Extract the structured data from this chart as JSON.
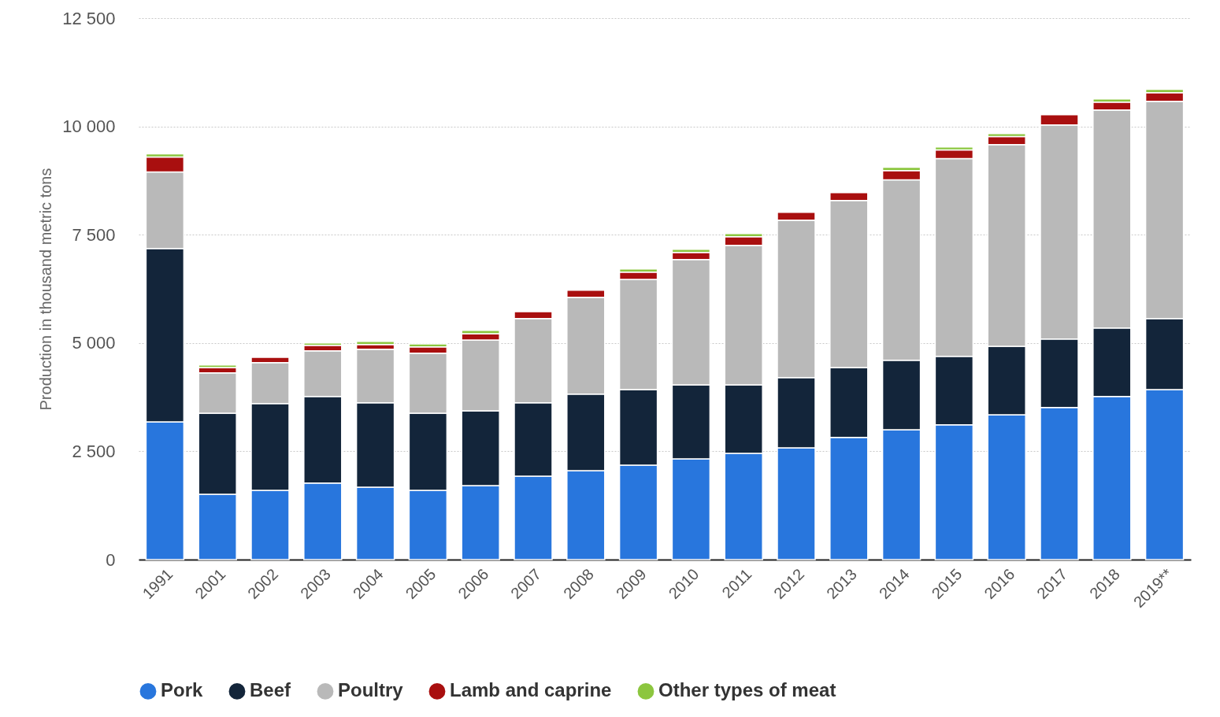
{
  "chart_data": {
    "type": "bar",
    "stacked": true,
    "ylabel": "Production in thousand metric tons",
    "categories": [
      "1991",
      "2001",
      "2002",
      "2003",
      "2004",
      "2005",
      "2006",
      "2007",
      "2008",
      "2009",
      "2010",
      "2011",
      "2012",
      "2013",
      "2014",
      "2015",
      "2016",
      "2017",
      "2018",
      "2019**"
    ],
    "series": [
      {
        "name": "Pork",
        "color": "#2876dd",
        "values": [
          3180,
          1510,
          1600,
          1765,
          1670,
          1600,
          1710,
          1925,
          2055,
          2180,
          2325,
          2455,
          2580,
          2820,
          3000,
          3110,
          3345,
          3510,
          3765,
          3925
        ]
      },
      {
        "name": "Beef",
        "color": "#13253a",
        "values": [
          4000,
          1870,
          2000,
          2000,
          1950,
          1780,
          1725,
          1695,
          1765,
          1745,
          1710,
          1580,
          1620,
          1615,
          1600,
          1580,
          1580,
          1580,
          1580,
          1640
        ]
      },
      {
        "name": "Poultry",
        "color": "#b9b9b9",
        "values": [
          1770,
          930,
          945,
          1055,
          1235,
          1385,
          1635,
          1945,
          2235,
          2545,
          2890,
          3220,
          3635,
          3855,
          4165,
          4565,
          4655,
          4945,
          5035,
          5015
        ]
      },
      {
        "name": "Lamb and caprine",
        "color": "#a90f0f",
        "values": [
          345,
          125,
          125,
          125,
          110,
          145,
          145,
          160,
          165,
          165,
          165,
          200,
          180,
          180,
          215,
          200,
          185,
          235,
          180,
          200
        ]
      },
      {
        "name": "Other types of meat",
        "color": "#8cc63f",
        "values": [
          70,
          55,
          null,
          55,
          70,
          70,
          75,
          null,
          null,
          75,
          75,
          70,
          null,
          null,
          75,
          70,
          70,
          null,
          75,
          75
        ]
      }
    ],
    "ylim": [
      0,
      12500
    ],
    "yticks": [
      0,
      {
        "value": 2500,
        "label": "2 500"
      },
      {
        "value": 5000,
        "label": "5 000"
      },
      {
        "value": 7500,
        "label": "7 500"
      },
      {
        "value": 10000,
        "label": "10 000"
      },
      {
        "value": 12500,
        "label": "12 500"
      }
    ],
    "grid": "y",
    "legend": "bottom"
  }
}
